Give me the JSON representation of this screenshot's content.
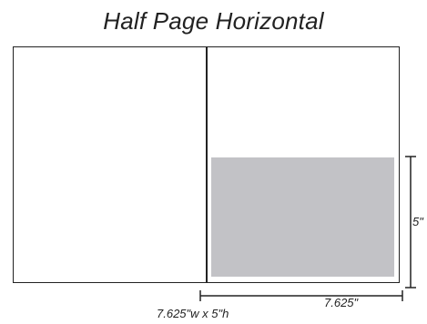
{
  "title": "Half Page Horizontal",
  "dimensions": {
    "width_label": "7.625\"",
    "height_label": "5\"",
    "size_label": "7.625\"w x 5\"h"
  },
  "colors": {
    "ad_block": "#c2c2c6",
    "lines": "#222222"
  }
}
